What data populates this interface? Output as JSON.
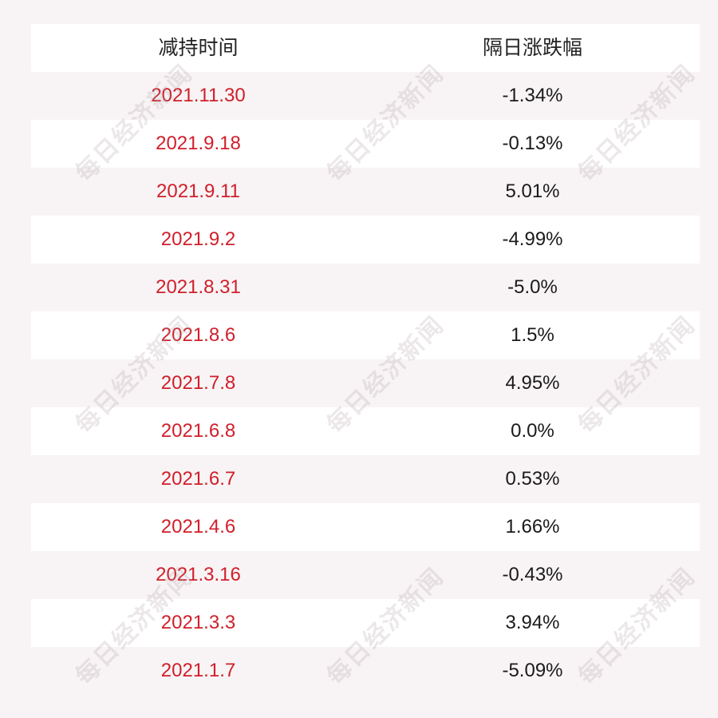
{
  "headers": {
    "date": "减持时间",
    "change": "隔日涨跌幅"
  },
  "rows": [
    {
      "date": "2021.11.30",
      "change": "-1.34%"
    },
    {
      "date": "2021.9.18",
      "change": "-0.13%"
    },
    {
      "date": "2021.9.11",
      "change": "5.01%"
    },
    {
      "date": "2021.9.2",
      "change": "-4.99%"
    },
    {
      "date": "2021.8.31",
      "change": "-5.0%"
    },
    {
      "date": "2021.8.6",
      "change": "1.5%"
    },
    {
      "date": "2021.7.8",
      "change": "4.95%"
    },
    {
      "date": "2021.6.8",
      "change": "0.0%"
    },
    {
      "date": "2021.6.7",
      "change": "0.53%"
    },
    {
      "date": "2021.4.6",
      "change": "1.66%"
    },
    {
      "date": "2021.3.16",
      "change": "-0.43%"
    },
    {
      "date": "2021.3.3",
      "change": "3.94%"
    },
    {
      "date": "2021.1.7",
      "change": "-5.09%"
    }
  ],
  "watermark": "每日经济新闻",
  "colors": {
    "date_text": "#d0202b",
    "change_text": "#1a1a1a",
    "row_white": "#ffffff",
    "row_tinted": "#f8f4f5"
  }
}
